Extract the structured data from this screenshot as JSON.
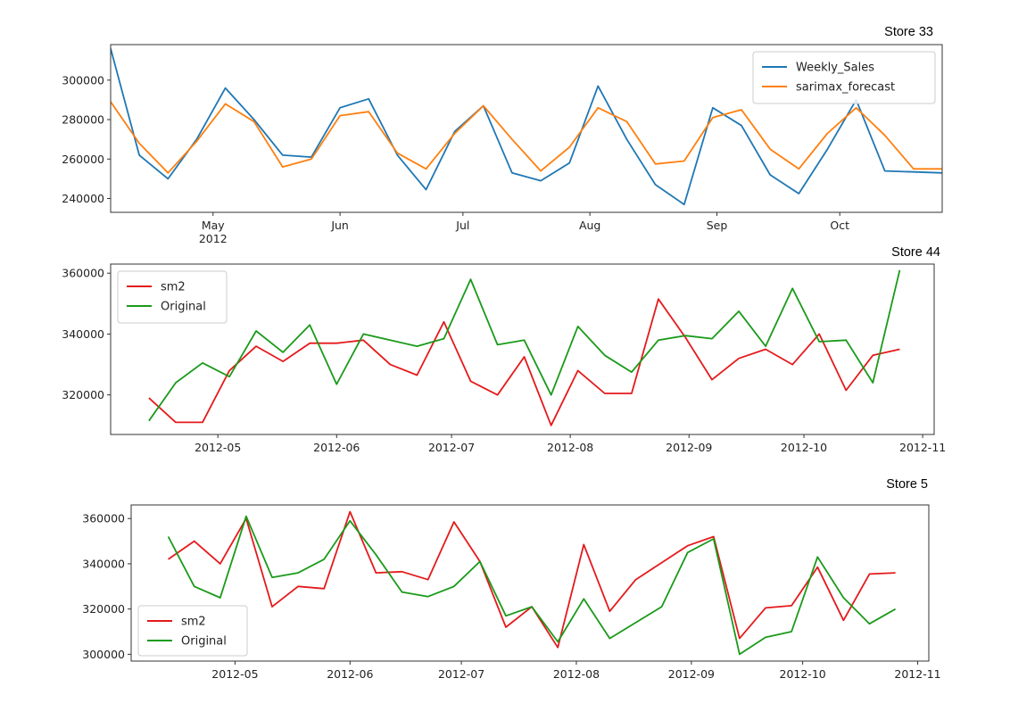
{
  "chart_data": [
    {
      "type": "line",
      "title": "Store 33",
      "xlabel": "",
      "ylabel": "",
      "x_type": "date",
      "xlim": [
        "2012-04-06",
        "2012-10-26"
      ],
      "ylim": [
        233000,
        318000
      ],
      "yticks": [
        240000,
        260000,
        280000,
        300000
      ],
      "xticks": [
        {
          "date": "2012-05-01",
          "label": "May",
          "sublabel": "2012"
        },
        {
          "date": "2012-06-01",
          "label": "Jun"
        },
        {
          "date": "2012-07-01",
          "label": "Jul"
        },
        {
          "date": "2012-08-01",
          "label": "Aug"
        },
        {
          "date": "2012-09-01",
          "label": "Sep"
        },
        {
          "date": "2012-10-01",
          "label": "Oct"
        }
      ],
      "legend_position": "upper right",
      "x": [
        "2012-04-06",
        "2012-04-13",
        "2012-04-20",
        "2012-04-27",
        "2012-05-04",
        "2012-05-11",
        "2012-05-18",
        "2012-05-25",
        "2012-06-01",
        "2012-06-08",
        "2012-06-15",
        "2012-06-22",
        "2012-06-29",
        "2012-07-06",
        "2012-07-13",
        "2012-07-20",
        "2012-07-27",
        "2012-08-03",
        "2012-08-10",
        "2012-08-17",
        "2012-08-24",
        "2012-08-31",
        "2012-09-07",
        "2012-09-14",
        "2012-09-21",
        "2012-09-28",
        "2012-10-05",
        "2012-10-12",
        "2012-10-19",
        "2012-10-26"
      ],
      "series": [
        {
          "name": "Weekly_Sales",
          "color": "#1f77b4",
          "values": [
            316000,
            262000,
            250000,
            270000,
            296000,
            280000,
            262000,
            261000,
            286000,
            290500,
            262000,
            244500,
            274000,
            287000,
            253000,
            249000,
            258000,
            297000,
            270000,
            247000,
            237000,
            286000,
            277000,
            252000,
            242500,
            265000,
            290000,
            254000,
            253500,
            253000
          ]
        },
        {
          "name": "sarimax_forecast",
          "color": "#ff7f0e",
          "values": [
            289000,
            268000,
            253000,
            269000,
            288000,
            279000,
            256000,
            260000,
            282000,
            284000,
            263000,
            255000,
            273000,
            287000,
            270000,
            254000,
            266000,
            286000,
            279000,
            257500,
            259000,
            281000,
            285000,
            265000,
            255000,
            273000,
            286000,
            272000,
            255000,
            255000
          ]
        }
      ]
    },
    {
      "type": "line",
      "title": "Store 44",
      "xlabel": "",
      "ylabel": "",
      "x_type": "date",
      "xlim": [
        "2012-04-03",
        "2012-11-04"
      ],
      "ylim": [
        307000,
        363000
      ],
      "yticks": [
        320000,
        340000,
        360000
      ],
      "xticks": [
        {
          "date": "2012-05-01",
          "label": "2012-05"
        },
        {
          "date": "2012-06-01",
          "label": "2012-06"
        },
        {
          "date": "2012-07-01",
          "label": "2012-07"
        },
        {
          "date": "2012-08-01",
          "label": "2012-08"
        },
        {
          "date": "2012-09-01",
          "label": "2012-09"
        },
        {
          "date": "2012-10-01",
          "label": "2012-10"
        },
        {
          "date": "2012-11-01",
          "label": "2012-11"
        }
      ],
      "legend_position": "upper left",
      "x": [
        "2012-04-13",
        "2012-04-20",
        "2012-04-27",
        "2012-05-04",
        "2012-05-11",
        "2012-05-18",
        "2012-05-25",
        "2012-06-01",
        "2012-06-08",
        "2012-06-15",
        "2012-06-22",
        "2012-06-29",
        "2012-07-06",
        "2012-07-13",
        "2012-07-20",
        "2012-07-27",
        "2012-08-03",
        "2012-08-10",
        "2012-08-17",
        "2012-08-24",
        "2012-08-31",
        "2012-09-07",
        "2012-09-14",
        "2012-09-21",
        "2012-09-28",
        "2012-10-05",
        "2012-10-12",
        "2012-10-19",
        "2012-10-26"
      ],
      "series": [
        {
          "name": "sm2",
          "color": "#e41a1c",
          "values": [
            319000,
            311000,
            311000,
            328000,
            336000,
            331000,
            337000,
            337000,
            338000,
            330000,
            326500,
            344000,
            324500,
            320000,
            332500,
            310000,
            328000,
            320500,
            320500,
            351500,
            339000,
            325000,
            332000,
            335000,
            330000,
            340000,
            321500,
            333000,
            335000
          ]
        },
        {
          "name": "Original",
          "color": "#1a9a1a",
          "values": [
            311500,
            324000,
            330500,
            326000,
            341000,
            334000,
            343000,
            323500,
            340000,
            338000,
            336000,
            338500,
            358000,
            336500,
            338000,
            320000,
            342500,
            333000,
            327500,
            338000,
            339500,
            338500,
            347500,
            336000,
            355000,
            337500,
            338000,
            324000,
            361000
          ]
        }
      ]
    },
    {
      "type": "line",
      "title": "Store 5",
      "xlabel": "",
      "ylabel": "",
      "x_type": "date",
      "xlim": [
        "2012-04-03",
        "2012-11-04"
      ],
      "ylim": [
        297000,
        366000
      ],
      "yticks": [
        300000,
        320000,
        340000,
        360000
      ],
      "xticks": [
        {
          "date": "2012-05-01",
          "label": "2012-05"
        },
        {
          "date": "2012-06-01",
          "label": "2012-06"
        },
        {
          "date": "2012-07-01",
          "label": "2012-07"
        },
        {
          "date": "2012-08-01",
          "label": "2012-08"
        },
        {
          "date": "2012-09-01",
          "label": "2012-09"
        },
        {
          "date": "2012-10-01",
          "label": "2012-10"
        },
        {
          "date": "2012-11-01",
          "label": "2012-11"
        }
      ],
      "legend_position": "lower left",
      "x": [
        "2012-04-13",
        "2012-04-20",
        "2012-04-27",
        "2012-05-04",
        "2012-05-11",
        "2012-05-18",
        "2012-05-25",
        "2012-06-01",
        "2012-06-08",
        "2012-06-15",
        "2012-06-22",
        "2012-06-29",
        "2012-07-06",
        "2012-07-13",
        "2012-07-20",
        "2012-07-27",
        "2012-08-03",
        "2012-08-10",
        "2012-08-17",
        "2012-08-24",
        "2012-08-31",
        "2012-09-07",
        "2012-09-14",
        "2012-09-21",
        "2012-09-28",
        "2012-10-05",
        "2012-10-12",
        "2012-10-19",
        "2012-10-26"
      ],
      "series": [
        {
          "name": "sm2",
          "color": "#e41a1c",
          "values": [
            342000,
            350000,
            340000,
            360000,
            321000,
            330000,
            329000,
            363000,
            336000,
            336500,
            333000,
            358500,
            341000,
            312000,
            321000,
            303000,
            348500,
            319000,
            333000,
            340500,
            348000,
            352000,
            307000,
            320500,
            321500,
            338500,
            315000,
            335500,
            336000
          ]
        },
        {
          "name": "Original",
          "color": "#1a9a1a",
          "values": [
            352000,
            330000,
            325000,
            361000,
            334000,
            336000,
            342000,
            359000,
            344000,
            327500,
            325500,
            330000,
            341000,
            317000,
            321000,
            305500,
            324500,
            307000,
            314000,
            321000,
            345000,
            351000,
            300000,
            307500,
            310000,
            343000,
            325000,
            313500,
            320000
          ]
        }
      ]
    }
  ]
}
